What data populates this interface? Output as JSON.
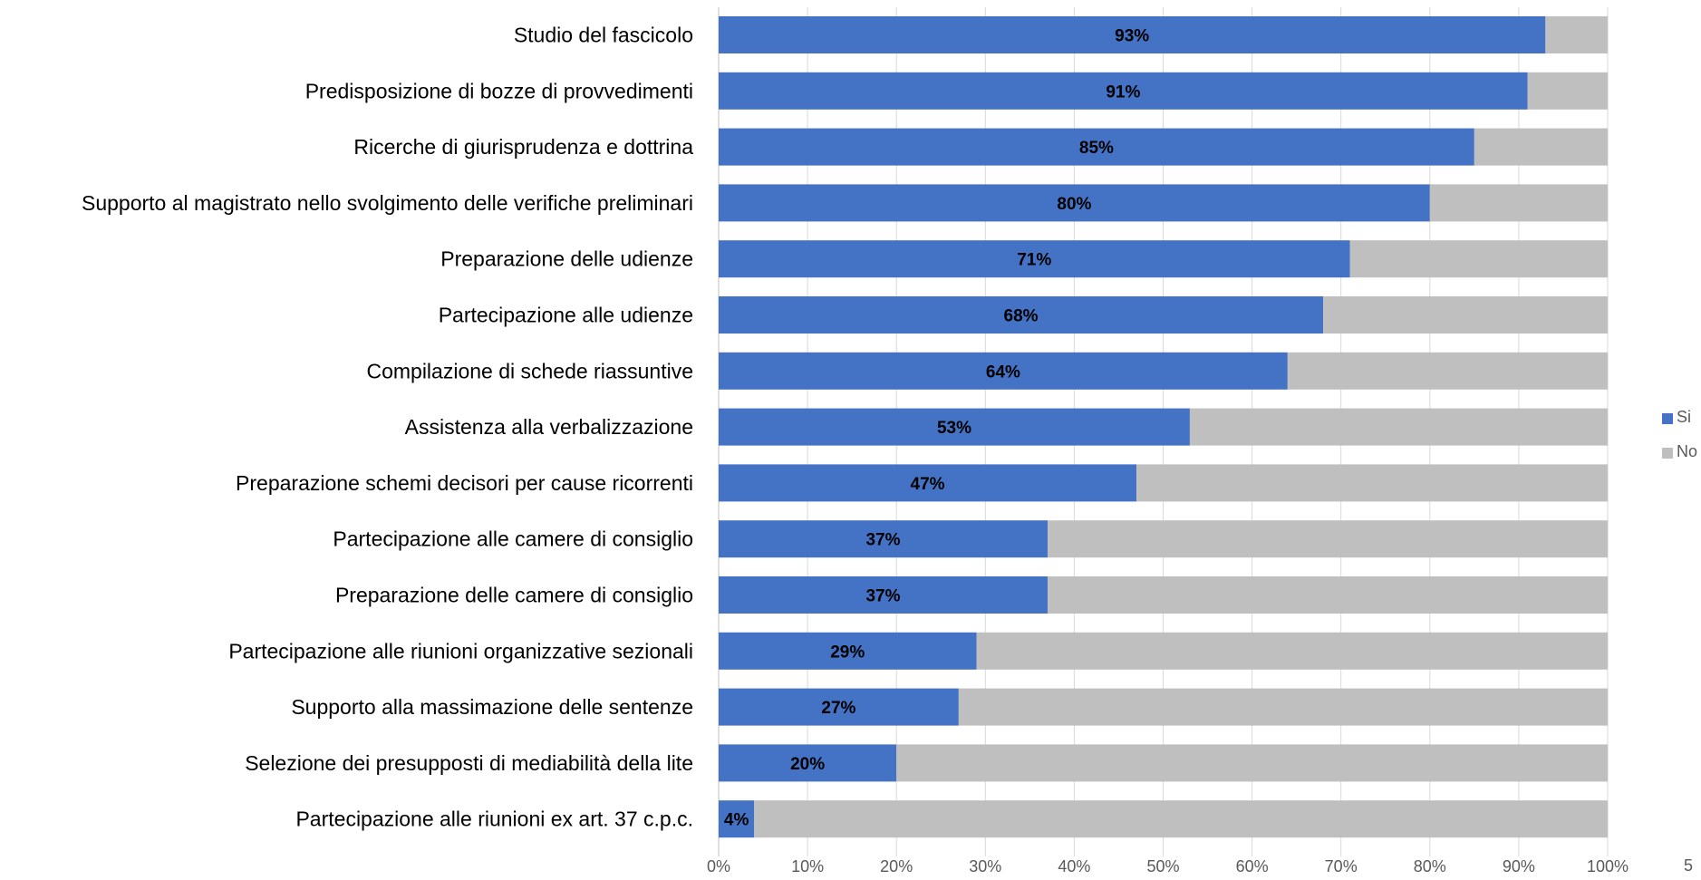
{
  "colors": {
    "si": "#4472C4",
    "no": "#BFBFBF",
    "grid": "#D9D9D9",
    "axis": "#BFBFBF"
  },
  "page_number": "5",
  "chart_data": {
    "type": "bar",
    "orientation": "horizontal",
    "stacked": "percent",
    "categories": [
      "Studio del fascicolo",
      "Predisposizione di bozze di provvedimenti",
      "Ricerche di giurisprudenza e dottrina",
      "Supporto al magistrato nello svolgimento delle verifiche preliminari",
      "Preparazione delle udienze",
      "Partecipazione alle udienze",
      "Compilazione di schede riassuntive",
      "Assistenza alla verbalizzazione",
      "Preparazione schemi decisori per cause ricorrenti",
      "Partecipazione alle camere di consiglio",
      "Preparazione delle camere di consiglio",
      "Partecipazione alle riunioni organizzative sezionali",
      "Supporto alla massimazione delle sentenze",
      "Selezione dei presupposti di mediabilità della lite",
      "Partecipazione alle riunioni ex art. 37 c.p.c."
    ],
    "series": [
      {
        "name": "Si",
        "color": "#4472C4",
        "values": [
          93,
          91,
          85,
          80,
          71,
          68,
          64,
          53,
          47,
          37,
          37,
          29,
          27,
          20,
          4
        ],
        "labels": [
          "93%",
          "91%",
          "85%",
          "80%",
          "71%",
          "68%",
          "64%",
          "53%",
          "47%",
          "37%",
          "37%",
          "29%",
          "27%",
          "20%",
          "4%"
        ]
      },
      {
        "name": "No",
        "color": "#BFBFBF",
        "values": [
          7,
          9,
          15,
          20,
          29,
          32,
          36,
          47,
          53,
          63,
          63,
          71,
          73,
          80,
          96
        ]
      }
    ],
    "xlim": [
      0,
      100
    ],
    "xticks": [
      "0%",
      "10%",
      "20%",
      "30%",
      "40%",
      "50%",
      "60%",
      "70%",
      "80%",
      "90%",
      "100%"
    ],
    "grid": true,
    "legend": "right"
  }
}
